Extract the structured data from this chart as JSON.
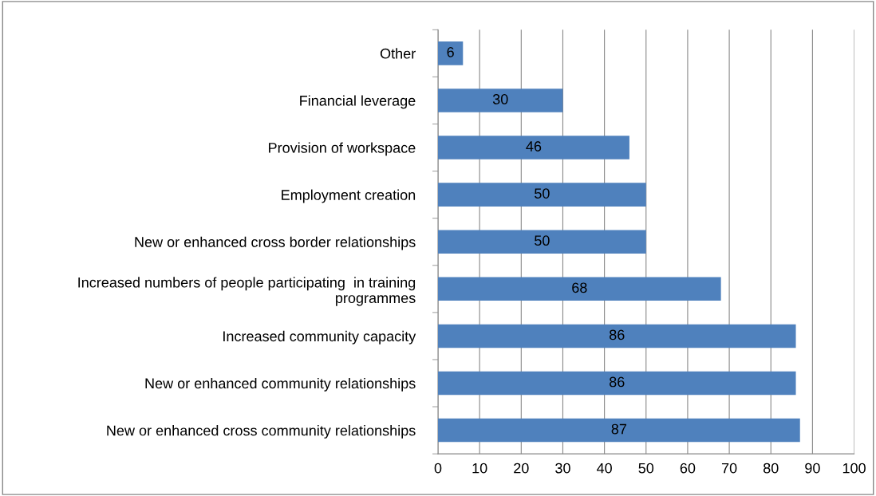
{
  "chart_data": {
    "type": "bar",
    "orientation": "horizontal",
    "categories": [
      "Other",
      "Financial leverage",
      "Provision of workspace",
      "Employment creation",
      "New or enhanced cross border relationships",
      "Increased numbers of people participating  in training\nprogrammes",
      "Increased community capacity",
      "New or enhanced community relationships",
      "New or enhanced cross community relationships"
    ],
    "values": [
      6,
      30,
      46,
      50,
      50,
      68,
      86,
      86,
      87
    ],
    "color": "#4f81bd",
    "xlim": [
      0,
      100
    ],
    "xticks": [
      0,
      10,
      20,
      30,
      40,
      50,
      60,
      70,
      80,
      90,
      100
    ],
    "grid": "x",
    "data_labels": true
  }
}
